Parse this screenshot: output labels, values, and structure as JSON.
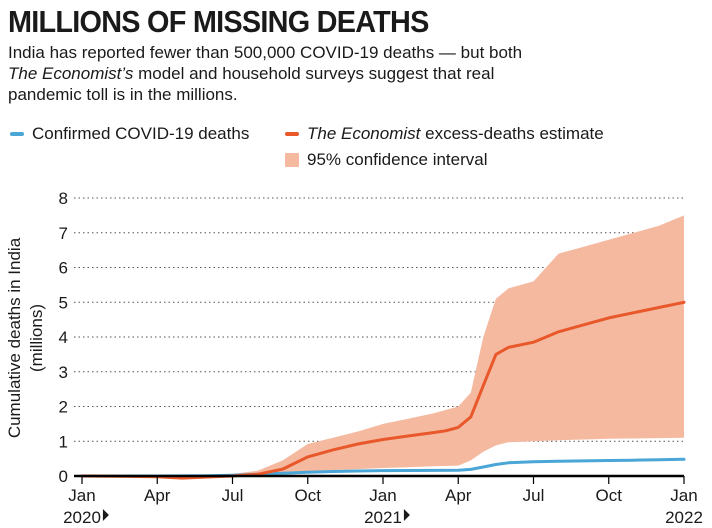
{
  "header": {
    "title": "MILLIONS OF MISSING DEATHS",
    "subtitle_lines": [
      "India has reported fewer than 500,000 COVID-19 deaths — but both",
      [
        "The Economist’s",
        " model and household surveys suggest that real"
      ],
      "pandemic toll is in the millions."
    ]
  },
  "legend": {
    "confirmed": "Confirmed COVID-19 deaths",
    "estimate_italic": "The Economist",
    "estimate_rest": " excess-deaths estimate",
    "ci": "95% confidence interval"
  },
  "colors": {
    "confirmed": "#4aa6d6",
    "estimate": "#e8582b",
    "ci": "#f5b9a0",
    "axis": "#000000",
    "grid": "#555555"
  },
  "chart_data": {
    "type": "line",
    "ylabel_lines": [
      "Cumulative deaths in India",
      "(millions)"
    ],
    "ylim": [
      0,
      8
    ],
    "yticks": [
      0,
      1,
      2,
      3,
      4,
      5,
      6,
      7,
      8
    ],
    "grid": "horizontal dotted",
    "x_ticks": [
      {
        "t": 0,
        "label": "Jan",
        "year": "2020"
      },
      {
        "t": 3,
        "label": "Apr"
      },
      {
        "t": 6,
        "label": "Jul"
      },
      {
        "t": 9,
        "label": "Oct"
      },
      {
        "t": 12,
        "label": "Jan",
        "year": "2021"
      },
      {
        "t": 15,
        "label": "Apr"
      },
      {
        "t": 18,
        "label": "Jul"
      },
      {
        "t": 21,
        "label": "Oct"
      },
      {
        "t": 24,
        "label": "Jan",
        "year": "2022",
        "year_no_arrow": true
      }
    ],
    "xlim": [
      0,
      24
    ],
    "series": [
      {
        "name": "Confirmed COVID-19 deaths",
        "key": "confirmed",
        "x": [
          0,
          3,
          5,
          6,
          7,
          8,
          9,
          10,
          11,
          12,
          13,
          14,
          15,
          15.5,
          16,
          16.5,
          17,
          18,
          19,
          20,
          21,
          22,
          23,
          24
        ],
        "values": [
          0,
          0,
          0.005,
          0.02,
          0.05,
          0.08,
          0.11,
          0.13,
          0.145,
          0.155,
          0.158,
          0.16,
          0.165,
          0.19,
          0.26,
          0.33,
          0.38,
          0.41,
          0.425,
          0.435,
          0.445,
          0.455,
          0.465,
          0.48
        ]
      },
      {
        "name": "The Economist excess-deaths estimate",
        "key": "estimate",
        "x": [
          0,
          3,
          4,
          5,
          6,
          7,
          8,
          9,
          10,
          11,
          12,
          13,
          14,
          14.5,
          15,
          15.5,
          16,
          16.5,
          17,
          18,
          19,
          20,
          21,
          22,
          23,
          24
        ],
        "values": [
          0,
          -0.02,
          -0.06,
          -0.03,
          0.0,
          0.05,
          0.2,
          0.55,
          0.75,
          0.92,
          1.05,
          1.15,
          1.25,
          1.3,
          1.4,
          1.7,
          2.6,
          3.5,
          3.7,
          3.85,
          4.15,
          4.35,
          4.55,
          4.7,
          4.85,
          5.0
        ]
      }
    ],
    "confidence_interval": {
      "name": "95% confidence interval",
      "x": [
        0,
        3,
        4,
        5,
        6,
        7,
        8,
        9,
        10,
        11,
        12,
        13,
        14,
        15,
        15.5,
        16,
        16.5,
        17,
        18,
        19,
        20,
        21,
        22,
        23,
        24
      ],
      "upper": [
        0,
        0,
        0.0,
        0.02,
        0.06,
        0.15,
        0.45,
        0.92,
        1.1,
        1.28,
        1.5,
        1.65,
        1.8,
        2.0,
        2.4,
        4.0,
        5.1,
        5.4,
        5.6,
        6.4,
        6.6,
        6.8,
        7.0,
        7.2,
        7.5
      ],
      "lower": [
        0,
        -0.03,
        -0.1,
        -0.07,
        -0.02,
        0.0,
        0.05,
        0.12,
        0.17,
        0.2,
        0.23,
        0.25,
        0.28,
        0.3,
        0.45,
        0.7,
        0.88,
        0.97,
        1.0,
        1.03,
        1.05,
        1.07,
        1.08,
        1.09,
        1.1
      ]
    }
  }
}
